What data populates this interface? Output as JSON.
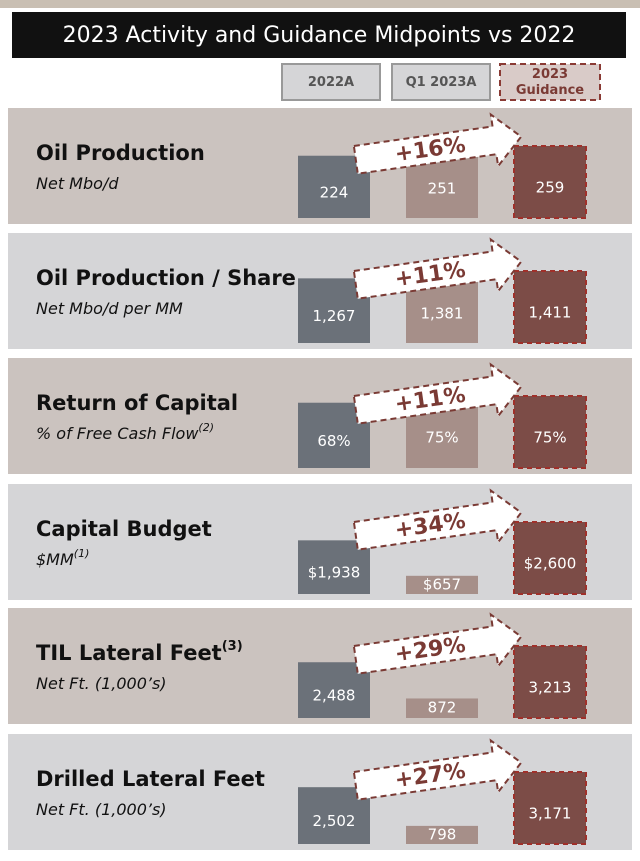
{
  "title": "2023 Activity and Guidance Midpoints vs 2022",
  "legend": [
    {
      "label": "2022A",
      "color": "#6b7179"
    },
    {
      "label": "Q1 2023A",
      "color": "#a68f89"
    },
    {
      "label": "2023\nGuidance",
      "color": "#7c4c47"
    }
  ],
  "rows": [
    {
      "title": "Oil Production",
      "subtitle": "Net Mbo/d",
      "values": [
        224,
        251,
        259
      ],
      "value_labels": [
        "224",
        "251",
        "259"
      ],
      "change": "+16%"
    },
    {
      "title": "Oil Production / Share",
      "subtitle": "Net Mbo/d per MM",
      "values": [
        1267,
        1381,
        1411
      ],
      "value_labels": [
        "1,267",
        "1,381",
        "1,411"
      ],
      "change": "+11%"
    },
    {
      "title": "Return of Capital",
      "subtitle": "% of Free Cash Flow",
      "subtitle_note": "(2)",
      "values": [
        68,
        75,
        75
      ],
      "value_labels": [
        "68%",
        "75%",
        "75%"
      ],
      "change": "+11%"
    },
    {
      "title": "Capital Budget",
      "subtitle": "$MM",
      "subtitle_note": "(1)",
      "values": [
        1938,
        657,
        2600
      ],
      "value_labels": [
        "$1,938",
        "$657",
        "$2,600"
      ],
      "change": "+34%"
    },
    {
      "title": "TIL Lateral Feet",
      "title_note": "(3)",
      "subtitle": "Net Ft. (1,000’s)",
      "values": [
        2488,
        872,
        3213
      ],
      "value_labels": [
        "2,488",
        "872",
        "3,213"
      ],
      "change": "+29%"
    },
    {
      "title": "Drilled Lateral Feet",
      "subtitle": "Net Ft. (1,000’s)",
      "values": [
        2502,
        798,
        3171
      ],
      "value_labels": [
        "2,502",
        "798",
        "3,171"
      ],
      "change": "+27%"
    }
  ]
}
